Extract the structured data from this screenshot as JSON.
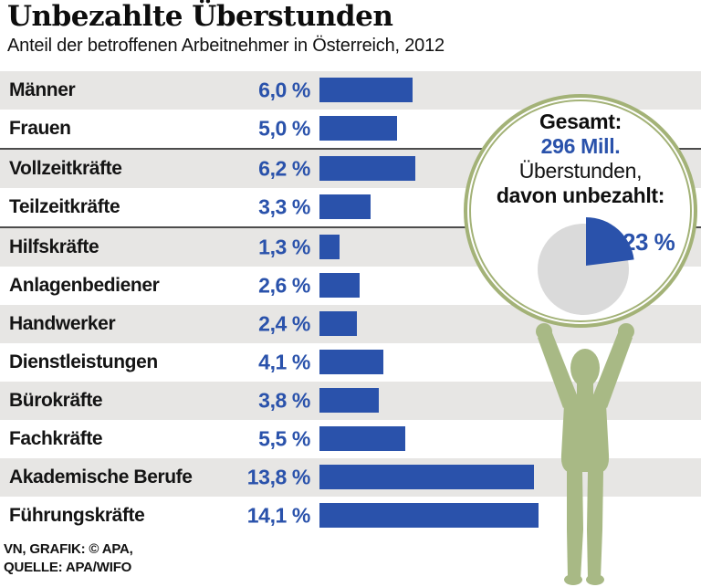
{
  "chart_data": {
    "type": "bar",
    "orientation": "horizontal",
    "title": "Unbezahlte Überstunden",
    "subtitle": "Anteil der betroffenen Arbeitnehmer in Österreich, 2012",
    "unit": "%",
    "xlim": [
      0,
      15
    ],
    "grid": false,
    "value_format": "german decimal comma, space before %",
    "bar_color": "#2a52ab",
    "categories": [
      "Männer",
      "Frauen",
      "Vollzeitkräfte",
      "Teilzeitkräfte",
      "Hilfskräfte",
      "Anlagenbediener",
      "Handwerker",
      "Dienstleistungen",
      "Bürokräfte",
      "Fachkräfte",
      "Akademische Berufe",
      "Führungskräfte"
    ],
    "values": [
      6.0,
      5.0,
      6.2,
      3.3,
      1.3,
      2.6,
      2.4,
      4.1,
      3.8,
      5.5,
      13.8,
      14.1
    ],
    "rows": [
      {
        "label": "Männer",
        "value": 6.0,
        "display": "6,0 %"
      },
      {
        "label": "Frauen",
        "value": 5.0,
        "display": "5,0 %"
      },
      {
        "label": "Vollzeitkräfte",
        "value": 6.2,
        "display": "6,2 %"
      },
      {
        "label": "Teilzeitkräfte",
        "value": 3.3,
        "display": "3,3 %"
      },
      {
        "label": "Hilfskräfte",
        "value": 1.3,
        "display": "1,3 %"
      },
      {
        "label": "Anlagenbediener",
        "value": 2.6,
        "display": "2,6 %"
      },
      {
        "label": "Handwerker",
        "value": 2.4,
        "display": "2,4 %"
      },
      {
        "label": "Dienstleistungen",
        "value": 4.1,
        "display": "4,1 %"
      },
      {
        "label": "Bürokräfte",
        "value": 3.8,
        "display": "3,8 %"
      },
      {
        "label": "Fachkräfte",
        "value": 5.5,
        "display": "5,5 %"
      },
      {
        "label": "Akademische Berufe",
        "value": 13.8,
        "display": "13,8 %"
      },
      {
        "label": "Führungskräfte",
        "value": 14.1,
        "display": "14,1 %"
      }
    ],
    "separators_after": [
      1,
      3
    ],
    "inset_pie": {
      "type": "pie",
      "line1": "Gesamt:",
      "line2": "296 Mill.",
      "line3": "Überstunden,",
      "line4": "davon unbezahlt:",
      "value_percent": 23,
      "label": "23 %",
      "slice_color": "#2a52ab",
      "rest_color": "#dadada"
    }
  },
  "footer": {
    "line1": "VN, GRAFIK: © APA,",
    "line2": "QUELLE: APA/WIFO"
  },
  "colors": {
    "accent_blue": "#2a52ab",
    "ring_olive": "#a3b277",
    "person_olive": "#a8b985",
    "row_stripe": "#e7e6e4",
    "pie_rest": "#dadada",
    "separator": "#4c4c4c",
    "background": "#ffffff"
  }
}
